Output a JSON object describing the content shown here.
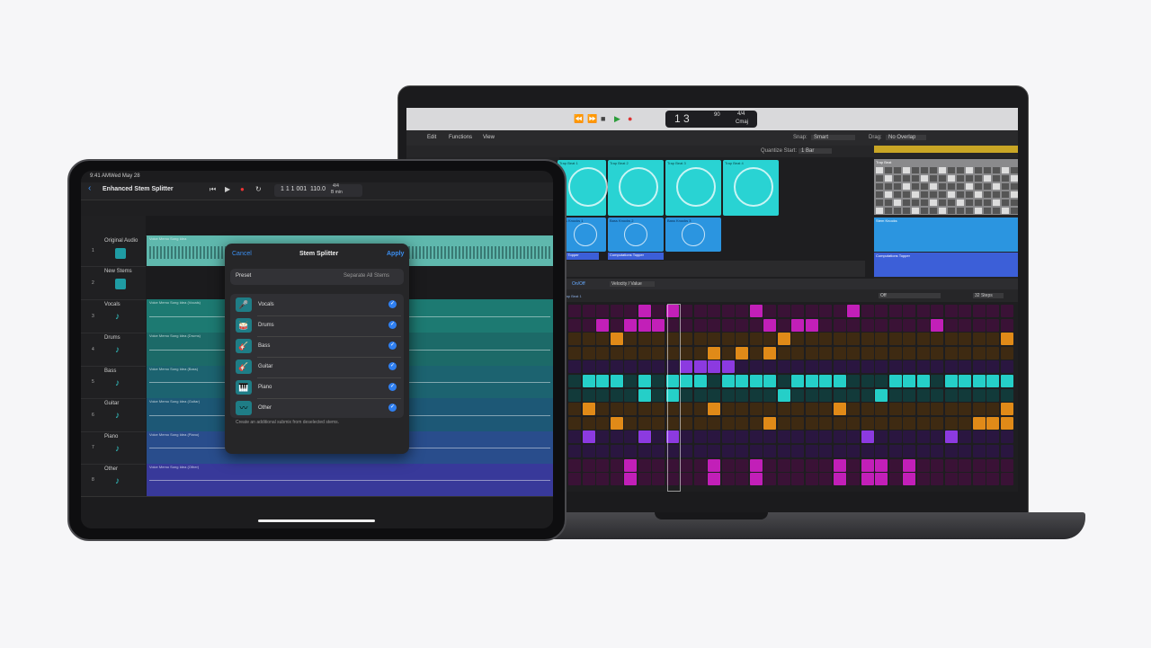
{
  "ipad": {
    "status_time": "9:41 AM",
    "status_date": "Wed May 28",
    "project_title": "Enhanced Stem Splitter",
    "transport": {
      "position": "1 1 1 001",
      "tempo": "110.0",
      "signature": "4/4",
      "key": "B min"
    },
    "tracks": [
      "Original Audio",
      "New Stems",
      "Vocals",
      "Drums",
      "Bass",
      "Guitar",
      "Piano",
      "Other"
    ],
    "track_numbers": [
      "1",
      "2",
      "3",
      "4",
      "5",
      "6",
      "7",
      "8"
    ],
    "regions": [
      "Voice Memo Song Idea",
      "Voice Memo Song Idea (Vocals)",
      "Voice Memo Song Idea (Drums)",
      "Voice Memo Song Idea (Bass)",
      "Voice Memo Song Idea (Guitar)",
      "Voice Memo Song Idea (Piano)",
      "Voice Memo Song Idea (Other)"
    ],
    "dialog": {
      "cancel": "Cancel",
      "title": "Stem Splitter",
      "apply": "Apply",
      "preset_label": "Preset",
      "preset_value": "Separate All Stems",
      "stems": [
        "Vocals",
        "Drums",
        "Bass",
        "Guitar",
        "Piano",
        "Other"
      ],
      "footnote": "Create an additional submix from deselected stems."
    }
  },
  "mac": {
    "transport": {
      "position": "1 3",
      "tempo": "90",
      "signature": "4/4",
      "key": "Cmaj"
    },
    "menus": [
      "Edit",
      "Functions",
      "View"
    ],
    "snap_label": "Snap:",
    "snap_value": "Smart",
    "drag_label": "Drag:",
    "drag_value": "No Overlap",
    "quantize_label": "Quantize Start:",
    "quantize_value": "1 Bar",
    "cells_row1": [
      "Trap Beat 1",
      "Trap Beat 2",
      "Trap Beat 3",
      "Trap Beat 4"
    ],
    "cells_row2": [
      "Bass Knocks 1",
      "Bass Knocks 2",
      "Bass Knocks 3"
    ],
    "cell_row3": [
      "Hate Topper",
      "Computations Topper"
    ],
    "regions": [
      "Trap Beat",
      "Stem Knocks",
      "Computations Topper"
    ],
    "step_header": {
      "on_off": "On/Off",
      "mode": "Velocity / Value",
      "region": "Trap Beat 1",
      "off": "Off",
      "steps": "32 Steps"
    }
  }
}
